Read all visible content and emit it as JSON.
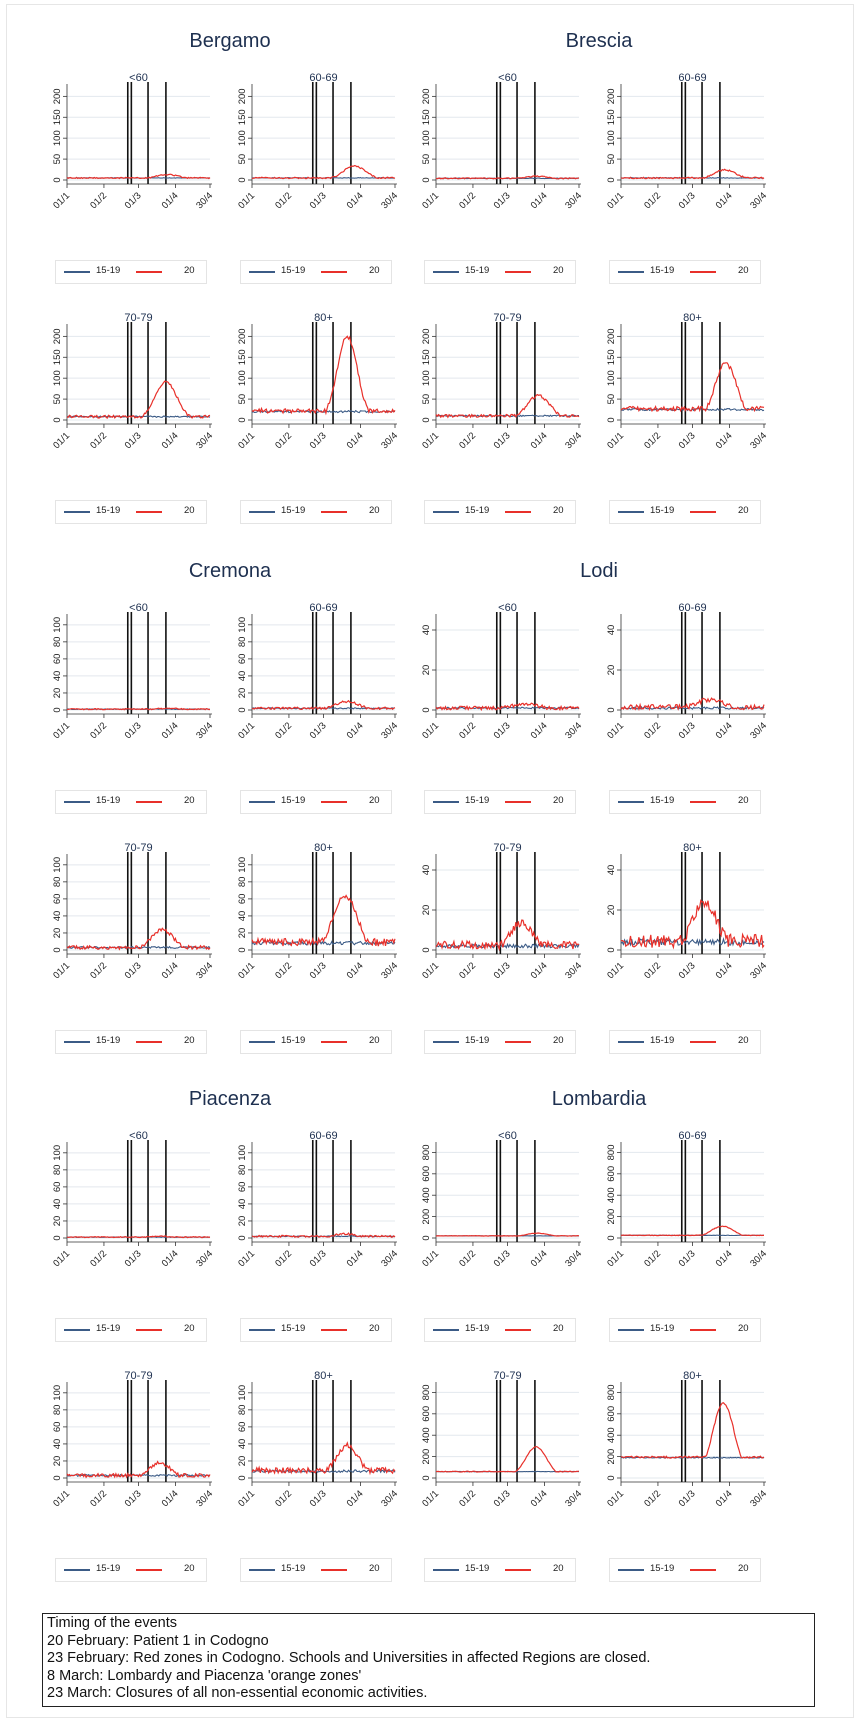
{
  "chart_data": {
    "type": "line",
    "x_ticks": [
      "01/1",
      "01/2",
      "01/3",
      "01/4",
      "30/4"
    ],
    "legend": [
      "15-19",
      "20"
    ],
    "colors": {
      "15-19": "#3b5b86",
      "20": "#e8302a"
    },
    "event_days": [
      51,
      54,
      68,
      83
    ],
    "regions": [
      {
        "name": "Bergamo",
        "panels": [
          {
            "label": "<60",
            "yticks": [
              0,
              50,
              100,
              150,
              200
            ],
            "ymax": 220,
            "base": 5,
            "red_base": 5,
            "peak": 13,
            "peak_day": 84,
            "width": 16,
            "noise": 1.2
          },
          {
            "label": "60-69",
            "yticks": [
              0,
              50,
              100,
              150,
              200
            ],
            "ymax": 220,
            "base": 5,
            "red_base": 5,
            "peak": 33,
            "peak_day": 86,
            "width": 14,
            "noise": 1.5
          },
          {
            "label": "70-79",
            "yticks": [
              0,
              50,
              100,
              150,
              200
            ],
            "ymax": 220,
            "base": 8,
            "red_base": 8,
            "peak": 92,
            "peak_day": 83,
            "width": 13,
            "noise": 3
          },
          {
            "label": "80+",
            "yticks": [
              0,
              50,
              100,
              150,
              200
            ],
            "ymax": 220,
            "base": 20,
            "red_base": 22,
            "peak": 200,
            "peak_day": 80,
            "width": 12,
            "noise": 5
          }
        ]
      },
      {
        "name": "Brescia",
        "panels": [
          {
            "label": "<60",
            "yticks": [
              0,
              50,
              100,
              150,
              200
            ],
            "ymax": 220,
            "base": 4,
            "red_base": 4,
            "peak": 9,
            "peak_day": 85,
            "width": 16,
            "noise": 1.2
          },
          {
            "label": "60-69",
            "yticks": [
              0,
              50,
              100,
              150,
              200
            ],
            "ymax": 220,
            "base": 5,
            "red_base": 5,
            "peak": 24,
            "peak_day": 87,
            "width": 14,
            "noise": 1.5
          },
          {
            "label": "70-79",
            "yticks": [
              0,
              50,
              100,
              150,
              200
            ],
            "ymax": 220,
            "base": 10,
            "red_base": 10,
            "peak": 58,
            "peak_day": 86,
            "width": 14,
            "noise": 3
          },
          {
            "label": "80+",
            "yticks": [
              0,
              50,
              100,
              150,
              200
            ],
            "ymax": 220,
            "base": 25,
            "red_base": 27,
            "peak": 135,
            "peak_day": 88,
            "width": 13,
            "noise": 5
          }
        ]
      },
      {
        "name": "Cremona",
        "panels": [
          {
            "label": "<60",
            "yticks": [
              0,
              20,
              40,
              60,
              80,
              100
            ],
            "ymax": 108,
            "base": 1,
            "red_base": 1,
            "peak": 2,
            "peak_day": 85,
            "width": 16,
            "noise": 0.6
          },
          {
            "label": "60-69",
            "yticks": [
              0,
              20,
              40,
              60,
              80,
              100
            ],
            "ymax": 108,
            "base": 2,
            "red_base": 2,
            "peak": 10,
            "peak_day": 80,
            "width": 14,
            "noise": 1.2
          },
          {
            "label": "70-79",
            "yticks": [
              0,
              20,
              40,
              60,
              80,
              100
            ],
            "ymax": 108,
            "base": 3,
            "red_base": 3,
            "peak": 24,
            "peak_day": 80,
            "width": 13,
            "noise": 2
          },
          {
            "label": "80+",
            "yticks": [
              0,
              20,
              40,
              60,
              80,
              100
            ],
            "ymax": 108,
            "base": 8,
            "red_base": 9,
            "peak": 65,
            "peak_day": 78,
            "width": 14,
            "noise": 4
          }
        ]
      },
      {
        "name": "Lodi",
        "panels": [
          {
            "label": "<60",
            "yticks": [
              0,
              20,
              40
            ],
            "ymax": 46,
            "base": 1,
            "red_base": 1,
            "peak": 3,
            "peak_day": 75,
            "width": 18,
            "noise": 0.8
          },
          {
            "label": "60-69",
            "yticks": [
              0,
              20,
              40
            ],
            "ymax": 46,
            "base": 1,
            "red_base": 1.5,
            "peak": 5,
            "peak_day": 75,
            "width": 18,
            "noise": 1.2
          },
          {
            "label": "70-79",
            "yticks": [
              0,
              20,
              40
            ],
            "ymax": 46,
            "base": 2,
            "red_base": 2.5,
            "peak": 14,
            "peak_day": 72,
            "width": 13,
            "noise": 1.8
          },
          {
            "label": "80+",
            "yticks": [
              0,
              20,
              40
            ],
            "ymax": 46,
            "base": 4,
            "red_base": 4.5,
            "peak": 24,
            "peak_day": 70,
            "width": 15,
            "noise": 3
          }
        ]
      },
      {
        "name": "Piacenza",
        "panels": [
          {
            "label": "<60",
            "yticks": [
              0,
              20,
              40,
              60,
              80,
              100
            ],
            "ymax": 108,
            "base": 1,
            "red_base": 1,
            "peak": 2,
            "peak_day": 78,
            "width": 16,
            "noise": 0.6
          },
          {
            "label": "60-69",
            "yticks": [
              0,
              20,
              40,
              60,
              80,
              100
            ],
            "ymax": 108,
            "base": 2,
            "red_base": 2,
            "peak": 5,
            "peak_day": 78,
            "width": 14,
            "noise": 1
          },
          {
            "label": "70-79",
            "yticks": [
              0,
              20,
              40,
              60,
              80,
              100
            ],
            "ymax": 108,
            "base": 3,
            "red_base": 3,
            "peak": 18,
            "peak_day": 78,
            "width": 12,
            "noise": 2
          },
          {
            "label": "80+",
            "yticks": [
              0,
              20,
              40,
              60,
              80,
              100
            ],
            "ymax": 108,
            "base": 8,
            "red_base": 9,
            "peak": 38,
            "peak_day": 80,
            "width": 14,
            "noise": 3
          }
        ]
      },
      {
        "name": "Lombardia",
        "panels": [
          {
            "label": "<60",
            "yticks": [
              0,
              200,
              400,
              600,
              800
            ],
            "ymax": 860,
            "base": 20,
            "red_base": 20,
            "peak": 45,
            "peak_day": 85,
            "width": 16,
            "noise": 2
          },
          {
            "label": "60-69",
            "yticks": [
              0,
              200,
              400,
              600,
              800
            ],
            "ymax": 860,
            "base": 25,
            "red_base": 25,
            "peak": 110,
            "peak_day": 85,
            "width": 14,
            "noise": 3
          },
          {
            "label": "70-79",
            "yticks": [
              0,
              200,
              400,
              600,
              800
            ],
            "ymax": 860,
            "base": 60,
            "red_base": 60,
            "peak": 290,
            "peak_day": 84,
            "width": 13,
            "noise": 4
          },
          {
            "label": "80+",
            "yticks": [
              0,
              200,
              400,
              600,
              800
            ],
            "ymax": 860,
            "base": 190,
            "red_base": 195,
            "peak": 700,
            "peak_day": 86,
            "width": 13,
            "noise": 8
          }
        ]
      }
    ]
  },
  "notes": {
    "title": "Timing of the events",
    "lines": [
      "20 February: Patient 1 in Codogno",
      "23 February: Red zones in Codogno. Schools and Universities in affected Regions are closed.",
      "8 March: Lombardy and Piacenza 'orange zones'",
      "23 March: Closures of all non-essential economic activities."
    ]
  }
}
